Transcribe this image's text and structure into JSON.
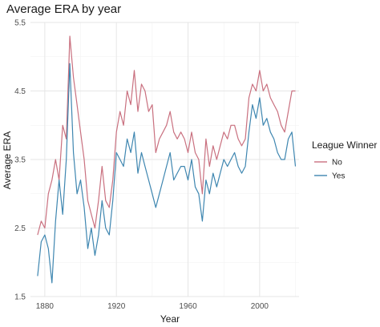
{
  "chart_data": {
    "type": "line",
    "title": "Average ERA by year",
    "xlabel": "Year",
    "ylabel": "Average ERA",
    "xlim": [
      1872,
      2022
    ],
    "ylim": [
      1.5,
      5.5
    ],
    "x_ticks": [
      1880,
      1920,
      1960,
      2000
    ],
    "y_ticks": [
      1.5,
      2.5,
      3.5,
      4.5,
      5.5
    ],
    "y_tick_labels": [
      "1.5",
      "2.5",
      "3.5",
      "4.5",
      "5.5"
    ],
    "grid": true,
    "legend": {
      "title": "League Winner",
      "position": "right"
    },
    "series": [
      {
        "name": "No",
        "color": "#c9707f",
        "x": [
          1876,
          1878,
          1880,
          1882,
          1884,
          1886,
          1888,
          1890,
          1892,
          1894,
          1896,
          1898,
          1900,
          1902,
          1904,
          1906,
          1908,
          1910,
          1912,
          1914,
          1916,
          1918,
          1920,
          1922,
          1924,
          1926,
          1928,
          1930,
          1932,
          1934,
          1936,
          1938,
          1940,
          1942,
          1944,
          1946,
          1948,
          1950,
          1952,
          1954,
          1956,
          1958,
          1960,
          1962,
          1964,
          1966,
          1968,
          1970,
          1972,
          1974,
          1976,
          1978,
          1980,
          1982,
          1984,
          1986,
          1988,
          1990,
          1992,
          1994,
          1996,
          1998,
          2000,
          2002,
          2004,
          2006,
          2008,
          2010,
          2012,
          2014,
          2016,
          2018,
          2020
        ],
        "values": [
          2.4,
          2.6,
          2.5,
          3.0,
          3.2,
          3.5,
          3.2,
          4.0,
          3.8,
          5.3,
          4.7,
          4.3,
          3.9,
          3.5,
          2.9,
          2.7,
          2.5,
          2.9,
          3.4,
          2.9,
          2.8,
          3.2,
          3.9,
          4.2,
          4.0,
          4.5,
          4.3,
          4.8,
          4.2,
          4.6,
          4.5,
          4.2,
          4.3,
          3.6,
          3.8,
          3.9,
          4.0,
          4.2,
          3.9,
          3.8,
          3.9,
          3.8,
          3.6,
          3.9,
          3.6,
          3.5,
          3.0,
          3.8,
          3.4,
          3.7,
          3.5,
          3.7,
          3.9,
          3.8,
          4.0,
          4.0,
          3.8,
          3.7,
          3.8,
          4.4,
          4.6,
          4.5,
          4.8,
          4.5,
          4.6,
          4.4,
          4.3,
          4.2,
          4.0,
          3.9,
          4.2,
          4.5,
          4.5
        ]
      },
      {
        "name": "Yes",
        "color": "#3e86b0",
        "x": [
          1876,
          1878,
          1880,
          1882,
          1884,
          1886,
          1888,
          1890,
          1892,
          1894,
          1896,
          1898,
          1900,
          1902,
          1904,
          1906,
          1908,
          1910,
          1912,
          1914,
          1916,
          1918,
          1920,
          1922,
          1924,
          1926,
          1928,
          1930,
          1932,
          1934,
          1936,
          1938,
          1940,
          1942,
          1944,
          1946,
          1948,
          1950,
          1952,
          1954,
          1956,
          1958,
          1960,
          1962,
          1964,
          1966,
          1968,
          1970,
          1972,
          1974,
          1976,
          1978,
          1980,
          1982,
          1984,
          1986,
          1988,
          1990,
          1992,
          1994,
          1996,
          1998,
          2000,
          2002,
          2004,
          2006,
          2008,
          2010,
          2012,
          2014,
          2016,
          2018,
          2020
        ],
        "values": [
          1.8,
          2.3,
          2.4,
          2.2,
          1.7,
          2.6,
          3.2,
          2.7,
          3.5,
          4.9,
          3.6,
          3.0,
          3.2,
          2.8,
          2.2,
          2.5,
          2.1,
          2.4,
          2.9,
          2.5,
          2.4,
          2.9,
          3.6,
          3.5,
          3.4,
          3.8,
          3.6,
          3.9,
          3.3,
          3.6,
          3.4,
          3.2,
          3.0,
          2.8,
          3.0,
          3.2,
          3.4,
          3.6,
          3.2,
          3.3,
          3.4,
          3.4,
          3.2,
          3.5,
          3.1,
          3.0,
          2.6,
          3.2,
          3.0,
          3.3,
          3.1,
          3.3,
          3.5,
          3.4,
          3.5,
          3.6,
          3.4,
          3.3,
          3.4,
          3.9,
          4.3,
          4.1,
          4.4,
          4.0,
          4.1,
          3.9,
          3.8,
          3.6,
          3.5,
          3.5,
          3.8,
          3.9,
          3.4
        ]
      }
    ]
  }
}
